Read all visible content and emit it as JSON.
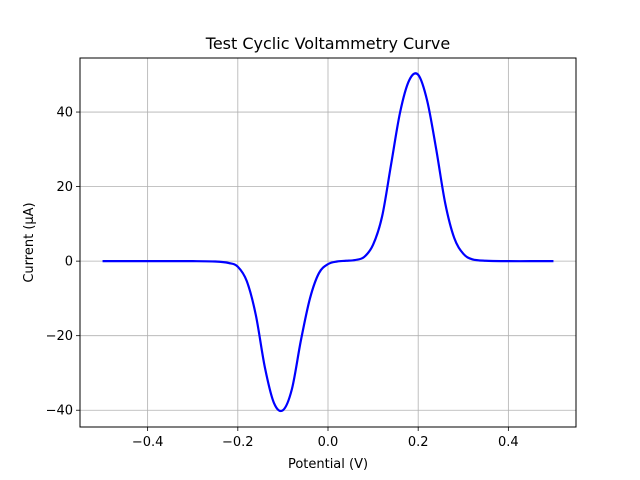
{
  "chart_data": {
    "type": "line",
    "title": "Test Cyclic Voltammetry Curve",
    "xlabel": "Potential (V)",
    "ylabel": "Current (µA)",
    "xlim": [
      -0.55,
      0.55
    ],
    "ylim": [
      -44.5,
      54.5
    ],
    "xticks": [
      -0.4,
      -0.2,
      0.0,
      0.2,
      0.4
    ],
    "xtick_labels": [
      "−0.4",
      "−0.2",
      "0.0",
      "0.2",
      "0.4"
    ],
    "yticks": [
      -40,
      -20,
      0,
      20,
      40
    ],
    "ytick_labels": [
      "−40",
      "−20",
      "0",
      "20",
      "40"
    ],
    "grid": true,
    "series": [
      {
        "color": "#0000ff",
        "x": [
          -0.5,
          -0.45,
          -0.4,
          -0.35,
          -0.3,
          -0.25,
          -0.22,
          -0.2,
          -0.18,
          -0.16,
          -0.14,
          -0.12,
          -0.1,
          -0.08,
          -0.06,
          -0.04,
          -0.02,
          0.0,
          0.02,
          0.04,
          0.06,
          0.08,
          0.1,
          0.12,
          0.14,
          0.16,
          0.18,
          0.2,
          0.22,
          0.24,
          0.26,
          0.28,
          0.3,
          0.32,
          0.35,
          0.4,
          0.45,
          0.5
        ],
        "y": [
          0,
          0,
          0,
          0,
          0,
          -0.1,
          -0.5,
          -1.5,
          -5.4,
          -14.5,
          -28.5,
          -38.0,
          -40.0,
          -34.3,
          -21.2,
          -10.0,
          -3.2,
          -0.8,
          -0.1,
          0.1,
          0.3,
          1.1,
          4.4,
          12.0,
          26.0,
          40.0,
          48.5,
          50.0,
          43.0,
          30.0,
          15.5,
          6.2,
          2.0,
          0.5,
          0.1,
          0,
          0,
          0
        ]
      }
    ]
  }
}
